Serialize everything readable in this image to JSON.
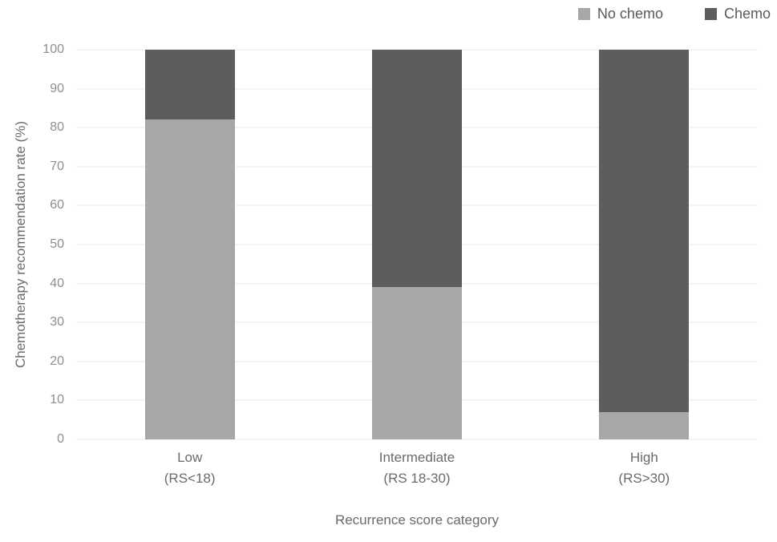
{
  "chart_data": {
    "type": "bar",
    "stacked": true,
    "title": "",
    "xlabel": "Recurrence score category",
    "ylabel": "Chemotherapy recommendation rate (%)",
    "ylim": [
      0,
      100
    ],
    "yticks": [
      0,
      10,
      20,
      30,
      40,
      50,
      60,
      70,
      80,
      90,
      100
    ],
    "grid": "horizontal",
    "legend_position": "top-right",
    "categories": [
      {
        "label": "Low",
        "sub": "(RS<18)"
      },
      {
        "label": "Intermediate",
        "sub": "(RS 18-30)"
      },
      {
        "label": "High",
        "sub": "(RS>30)"
      }
    ],
    "series": [
      {
        "name": "No chemo",
        "color": "#a7a7a7",
        "values": [
          82,
          39,
          7
        ]
      },
      {
        "name": "Chemo",
        "color": "#5d5d5d",
        "values": [
          18,
          61,
          93
        ]
      }
    ]
  },
  "colors": {
    "background": "#ffffff",
    "gridline": "#e9e9e9",
    "tick_label": "#8f8f8f",
    "axis_label": "#6a6a6a",
    "legend_text": "#595959"
  }
}
